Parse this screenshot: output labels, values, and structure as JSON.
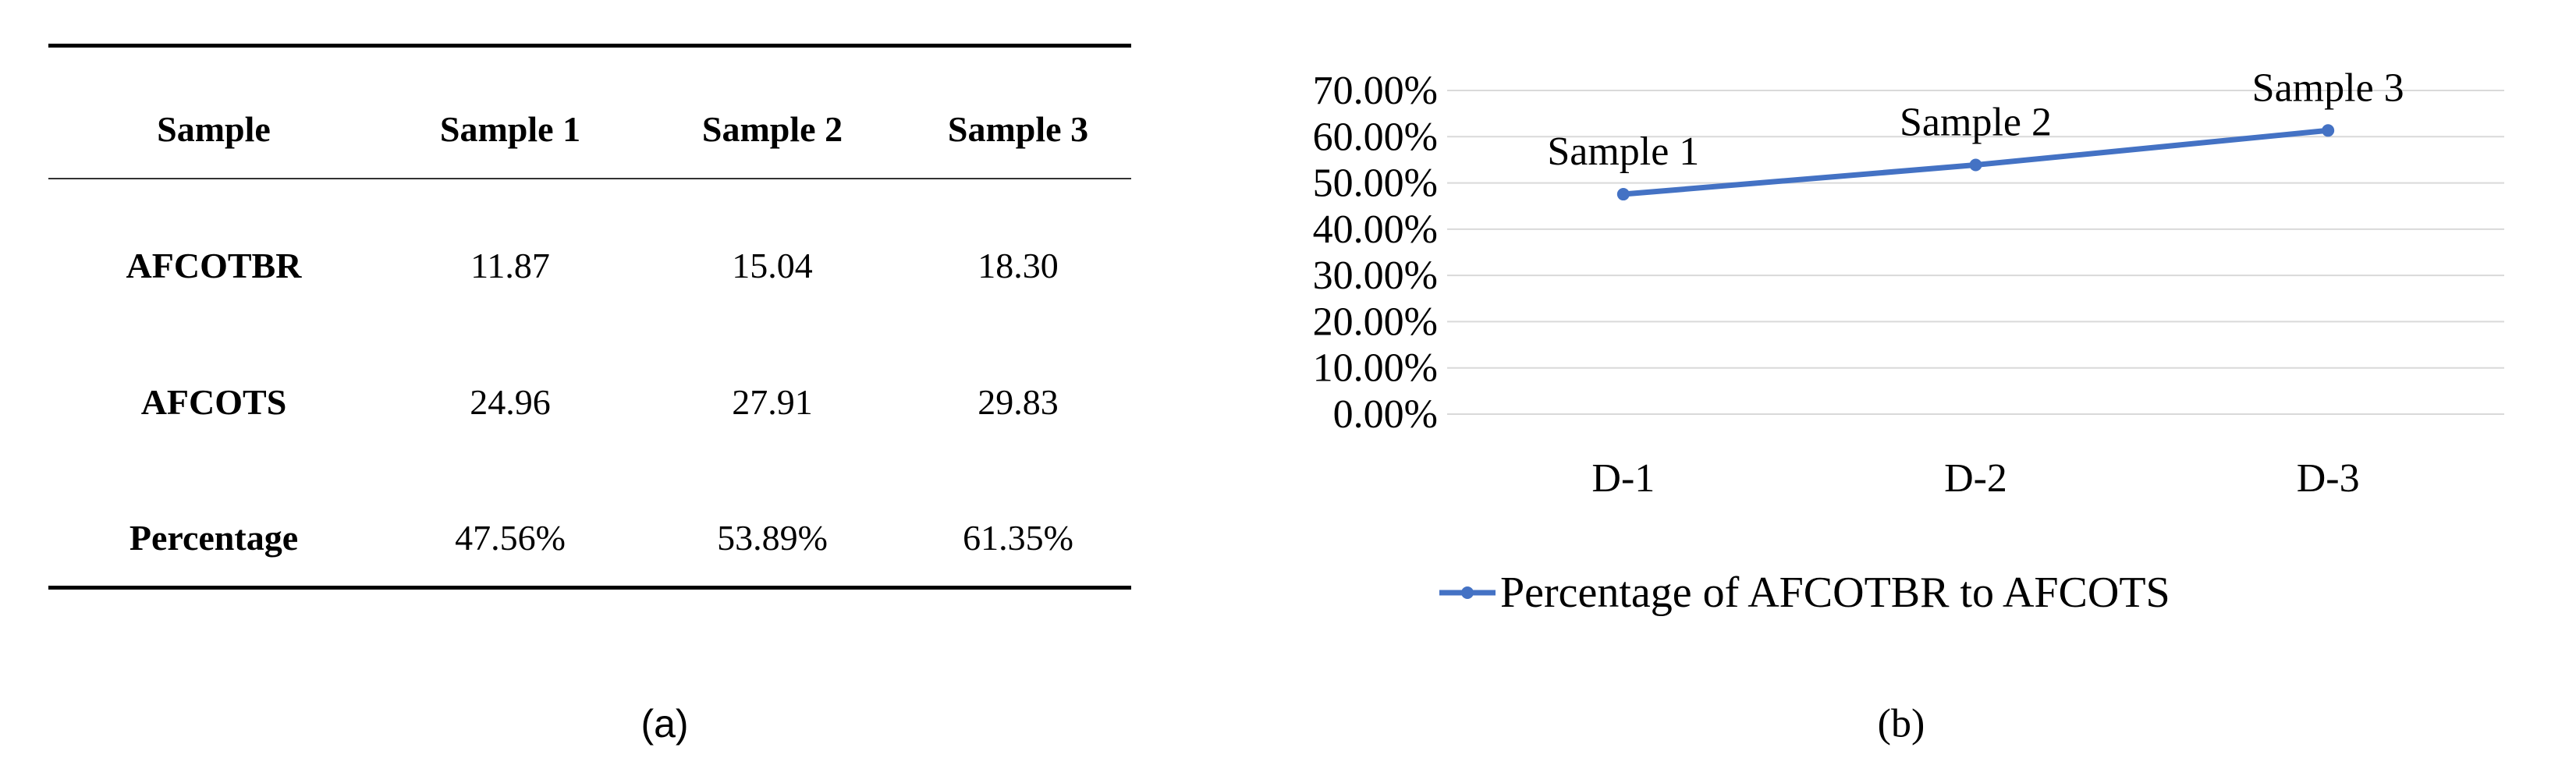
{
  "table": {
    "header": [
      "Sample",
      "Sample 1",
      "Sample 2",
      "Sample 3"
    ],
    "rows": [
      {
        "label": "AFCOTBR",
        "values": [
          "11.87",
          "15.04",
          "18.30"
        ]
      },
      {
        "label": "AFCOTS",
        "values": [
          "24.96",
          "27.91",
          "29.83"
        ]
      },
      {
        "label": "Percentage",
        "values": [
          "47.56%",
          "53.89%",
          "61.35%"
        ]
      }
    ]
  },
  "captions": {
    "a": "(a)",
    "b": "(b)"
  },
  "chart_data": {
    "type": "line",
    "categories": [
      "D-1",
      "D-2",
      "D-3"
    ],
    "series": [
      {
        "name": "Percentage of AFCOTBR to AFCOTS",
        "values": [
          0.4756,
          0.5389,
          0.6135
        ],
        "point_labels": [
          "Sample 1",
          "Sample 2",
          "Sample 3"
        ],
        "color": "#4472C4"
      }
    ],
    "ylim": [
      0,
      0.7
    ],
    "yticks": [
      "0.00%",
      "10.00%",
      "20.00%",
      "30.00%",
      "40.00%",
      "50.00%",
      "60.00%",
      "70.00%"
    ],
    "grid": true,
    "legend": "bottom",
    "gridColor": "#d9d9d9"
  }
}
